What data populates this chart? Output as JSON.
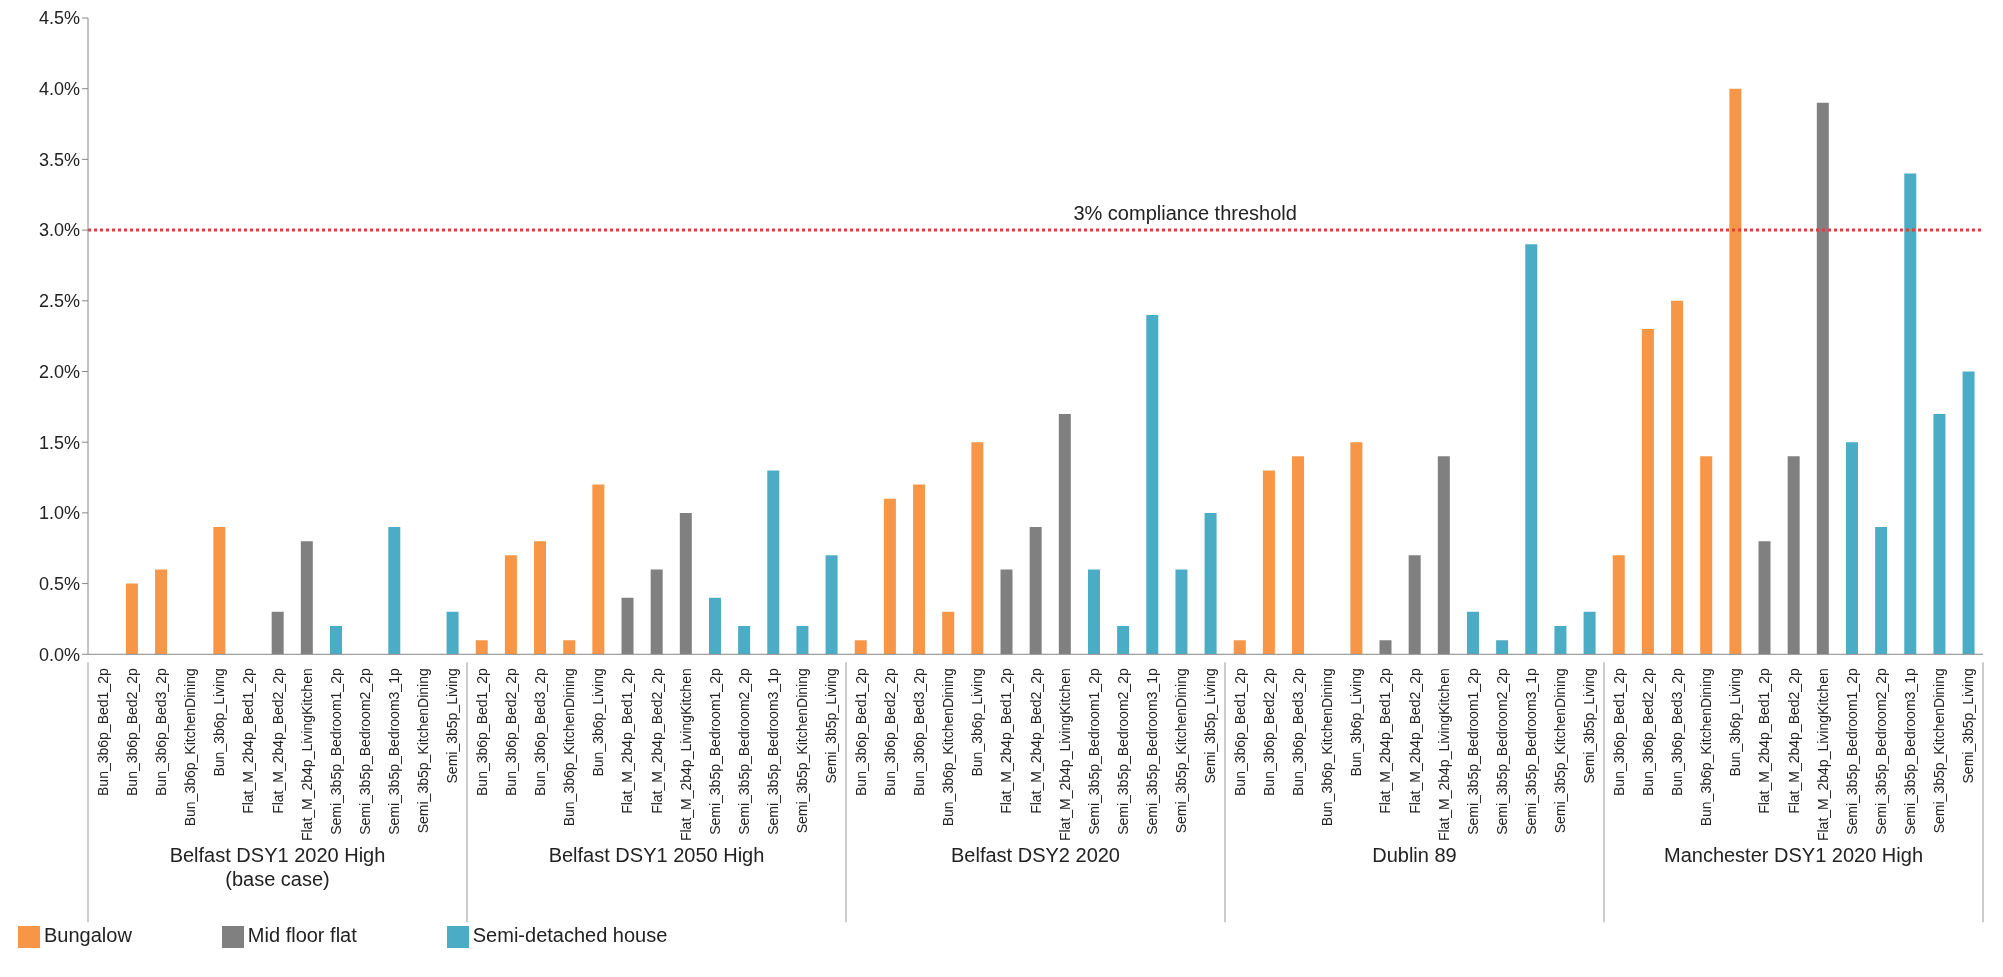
{
  "chart_data": {
    "type": "bar",
    "stacked": true,
    "categories": [
      "Bun_3b6p_Bed1_2p",
      "Bun_3b6p_Bed2_2p",
      "Bun_3b6p_Bed3_2p",
      "Bun_3b6p_KitchenDining",
      "Bun_3b6p_Living",
      "Flat_M_2b4p_Bed1_2p",
      "Flat_M_2b4p_Bed2_2p",
      "Flat_M_2b4p_LivingKitchen",
      "Semi_3b5p_Bedroom1_2p",
      "Semi_3b5p_Bedroom2_2p",
      "Semi_3b5p_Bedroom3_1p",
      "Semi_3b5p_KitchenDining",
      "Semi_3b5p_Living",
      "Bun_3b6p_Bed1_2p",
      "Bun_3b6p_Bed2_2p",
      "Bun_3b6p_Bed3_2p",
      "Bun_3b6p_KitchenDining",
      "Bun_3b6p_Living",
      "Flat_M_2b4p_Bed1_2p",
      "Flat_M_2b4p_Bed2_2p",
      "Flat_M_2b4p_LivingKitchen",
      "Semi_3b5p_Bedroom1_2p",
      "Semi_3b5p_Bedroom2_2p",
      "Semi_3b5p_Bedroom3_1p",
      "Semi_3b5p_KitchenDining",
      "Semi_3b5p_Living",
      "Bun_3b6p_Bed1_2p",
      "Bun_3b6p_Bed2_2p",
      "Bun_3b6p_Bed3_2p",
      "Bun_3b6p_KitchenDining",
      "Bun_3b6p_Living",
      "Flat_M_2b4p_Bed1_2p",
      "Flat_M_2b4p_Bed2_2p",
      "Flat_M_2b4p_LivingKitchen",
      "Semi_3b5p_Bedroom1_2p",
      "Semi_3b5p_Bedroom2_2p",
      "Semi_3b5p_Bedroom3_1p",
      "Semi_3b5p_KitchenDining",
      "Semi_3b5p_Living",
      "Bun_3b6p_Bed1_2p",
      "Bun_3b6p_Bed2_2p",
      "Bun_3b6p_Bed3_2p",
      "Bun_3b6p_KitchenDining",
      "Bun_3b6p_Living",
      "Flat_M_2b4p_Bed1_2p",
      "Flat_M_2b4p_Bed2_2p",
      "Flat_M_2b4p_LivingKitchen",
      "Semi_3b5p_Bedroom1_2p",
      "Semi_3b5p_Bedroom2_2p",
      "Semi_3b5p_Bedroom3_1p",
      "Semi_3b5p_KitchenDining",
      "Semi_3b5p_Living",
      "Bun_3b6p_Bed1_2p",
      "Bun_3b6p_Bed2_2p",
      "Bun_3b6p_Bed3_2p",
      "Bun_3b6p_KitchenDining",
      "Bun_3b6p_Living",
      "Flat_M_2b4p_Bed1_2p",
      "Flat_M_2b4p_Bed2_2p",
      "Flat_M_2b4p_LivingKitchen",
      "Semi_3b5p_Bedroom1_2p",
      "Semi_3b5p_Bedroom2_2p",
      "Semi_3b5p_Bedroom3_1p",
      "Semi_3b5p_KitchenDining",
      "Semi_3b5p_Living"
    ],
    "series": [
      {
        "name": "Bungalow",
        "color": "#f79646",
        "values": [
          0,
          0.5,
          0.6,
          0,
          0.9,
          null,
          null,
          null,
          null,
          null,
          null,
          null,
          null,
          0.1,
          0.7,
          0.8,
          0.1,
          1.2,
          null,
          null,
          null,
          null,
          null,
          null,
          null,
          null,
          0.1,
          1.1,
          1.2,
          0.3,
          1.5,
          null,
          null,
          null,
          null,
          null,
          null,
          null,
          null,
          0.1,
          1.3,
          1.4,
          0,
          1.5,
          null,
          null,
          null,
          null,
          null,
          null,
          null,
          null,
          0.7,
          2.3,
          2.5,
          1.4,
          4.0,
          null,
          null,
          null,
          null,
          null,
          null,
          null,
          null
        ]
      },
      {
        "name": "Mid floor flat",
        "color": "#808080",
        "values": [
          null,
          null,
          null,
          null,
          null,
          0,
          0.3,
          0.8,
          null,
          null,
          null,
          null,
          null,
          null,
          null,
          null,
          null,
          null,
          0.4,
          0.6,
          1.0,
          null,
          null,
          null,
          null,
          null,
          null,
          null,
          null,
          null,
          null,
          0.6,
          0.9,
          1.7,
          null,
          null,
          null,
          null,
          null,
          null,
          null,
          null,
          null,
          null,
          0.1,
          0.7,
          1.4,
          null,
          null,
          null,
          null,
          null,
          null,
          null,
          null,
          null,
          null,
          0.8,
          1.4,
          3.9,
          null,
          null,
          null,
          null,
          null
        ]
      },
      {
        "name": "Semi-detached house",
        "color": "#4bacc6",
        "values": [
          null,
          null,
          null,
          null,
          null,
          null,
          null,
          null,
          0.2,
          0,
          0.9,
          0,
          0.3,
          null,
          null,
          null,
          null,
          null,
          null,
          null,
          null,
          0.4,
          0.2,
          1.3,
          0.2,
          0.7,
          null,
          null,
          null,
          null,
          null,
          null,
          null,
          null,
          0.6,
          0.2,
          2.4,
          0.6,
          1.0,
          null,
          null,
          null,
          null,
          null,
          null,
          null,
          null,
          0.3,
          0.1,
          2.9,
          0.2,
          0.3,
          null,
          null,
          null,
          null,
          null,
          null,
          null,
          null,
          1.5,
          0.9,
          3.4,
          1.7,
          2.0
        ]
      }
    ],
    "annotations": [
      "Belfast DSY1 2020 High (base case)",
      "Belfast DSY1 2050 High",
      "Belfast DSY2 2020",
      "Dublin 89",
      "Manchester DSY1 2020 High"
    ],
    "ylim": [
      0,
      4.5
    ],
    "yticks": [
      {
        "value": 0,
        "label": "0.0%"
      },
      {
        "value": 0.5,
        "label": "0.5%"
      },
      {
        "value": 1,
        "label": "1.0%"
      },
      {
        "value": 1.5,
        "label": "1.5%"
      },
      {
        "value": 2,
        "label": "2.0%"
      },
      {
        "value": 2.5,
        "label": "2.5%"
      },
      {
        "value": 3,
        "label": "3.0%"
      },
      {
        "value": 3.5,
        "label": "3.5%"
      },
      {
        "value": 4,
        "label": "4.0%"
      },
      {
        "value": 4.5,
        "label": "4.5%"
      }
    ],
    "ref_lines": [
      {
        "axis": "y",
        "value": 3,
        "label": "3% compliance threshold",
        "color": "#e0403a",
        "line_style": "dotted"
      }
    ],
    "grid": false,
    "legend": "bottom left"
  }
}
